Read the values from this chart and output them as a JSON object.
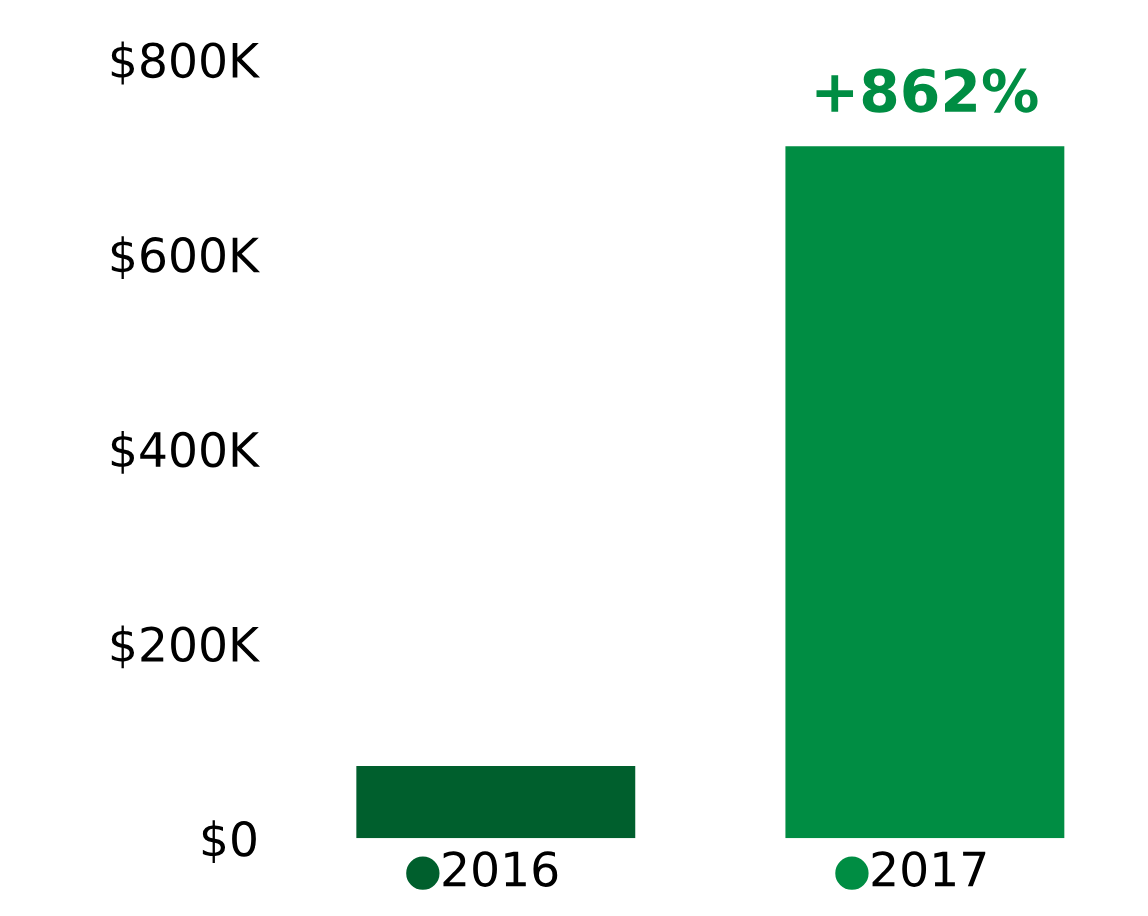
{
  "chart_data": {
    "type": "bar",
    "categories": [
      "2016",
      "2017"
    ],
    "values": [
      74,
      711
    ],
    "colors": [
      "#005f2d",
      "#008d43"
    ],
    "ylim": [
      0,
      800
    ],
    "yticks": [
      {
        "value": 0,
        "label": "$0"
      },
      {
        "value": 200,
        "label": "$200K"
      },
      {
        "value": 400,
        "label": "$400K"
      },
      {
        "value": 600,
        "label": "$600K"
      },
      {
        "value": 800,
        "label": "$800K"
      }
    ],
    "annotations": [
      {
        "text": "+862%",
        "x": "2017",
        "y": 711
      }
    ],
    "grid": false,
    "legend": false
  }
}
